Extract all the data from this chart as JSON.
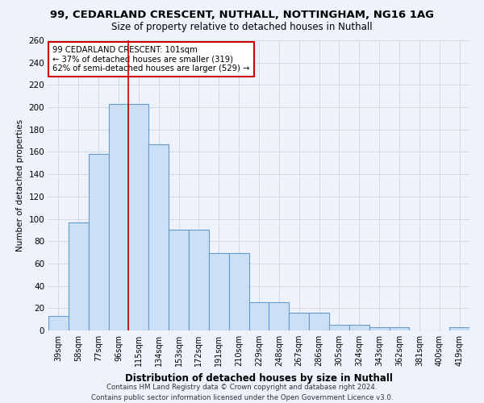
{
  "title_line1": "99, CEDARLAND CRESCENT, NUTHALL, NOTTINGHAM, NG16 1AG",
  "title_line2": "Size of property relative to detached houses in Nuthall",
  "xlabel": "Distribution of detached houses by size in Nuthall",
  "ylabel": "Number of detached properties",
  "categories": [
    "39sqm",
    "58sqm",
    "77sqm",
    "96sqm",
    "115sqm",
    "134sqm",
    "153sqm",
    "172sqm",
    "191sqm",
    "210sqm",
    "229sqm",
    "248sqm",
    "267sqm",
    "286sqm",
    "305sqm",
    "324sqm",
    "343sqm",
    "362sqm",
    "381sqm",
    "400sqm",
    "419sqm"
  ],
  "values": [
    13,
    97,
    158,
    203,
    203,
    167,
    90,
    90,
    69,
    69,
    25,
    25,
    16,
    16,
    5,
    5,
    3,
    3,
    0,
    0,
    3
  ],
  "bar_color": "#cce0f5",
  "bar_edge_color": "#6699cc",
  "grid_color": "#d0daea",
  "bg_color": "#eef2fb",
  "marker_index": 3,
  "marker_color": "#cc0000",
  "annotation_line1": "99 CEDARLAND CRESCENT: 101sqm",
  "annotation_line2": "← 37% of detached houses are smaller (319)",
  "annotation_line3": "62% of semi-detached houses are larger (529) →",
  "annotation_box_color": "#ffffff",
  "annotation_border_color": "#cc0000",
  "ylim": [
    0,
    260
  ],
  "yticks": [
    0,
    20,
    40,
    60,
    80,
    100,
    120,
    140,
    160,
    180,
    200,
    220,
    240,
    260
  ],
  "footer_line1": "Contains HM Land Registry data © Crown copyright and database right 2024.",
  "footer_line2": "Contains public sector information licensed under the Open Government Licence v3.0."
}
